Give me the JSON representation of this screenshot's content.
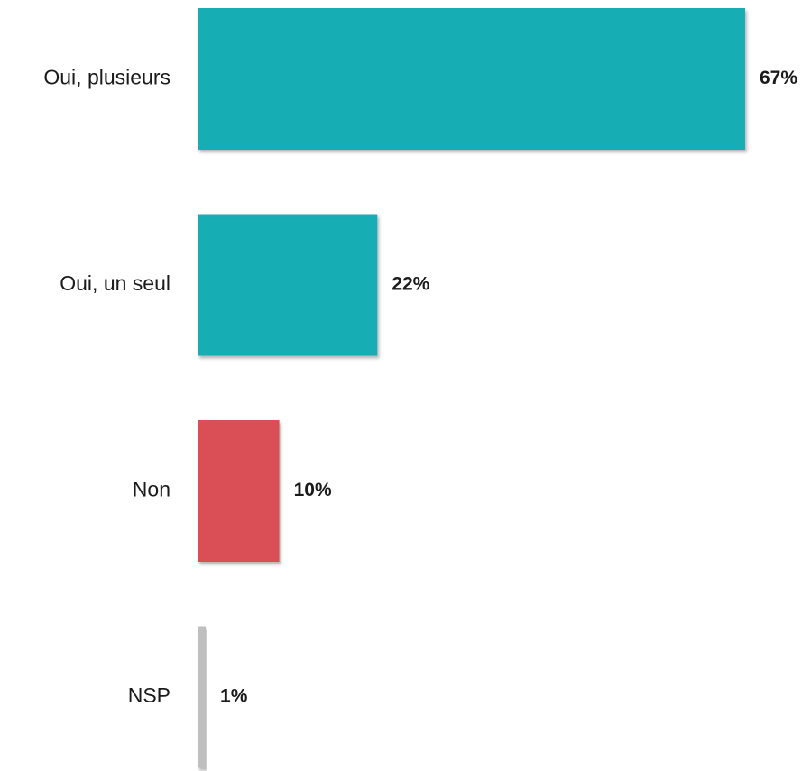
{
  "chart_data": {
    "type": "bar",
    "orientation": "horizontal",
    "categories": [
      "Oui, plusieurs",
      "Oui, un seul",
      "Non",
      "NSP"
    ],
    "values": [
      67,
      22,
      10,
      1
    ],
    "value_labels": [
      "67%",
      "22%",
      "10%",
      "1%"
    ],
    "unit": "%",
    "colors": [
      "#14aeb4",
      "#14aeb4",
      "#d94f54",
      "#bfbfbf"
    ],
    "xlim": [
      0,
      67
    ],
    "grid": false,
    "legend": "none"
  }
}
